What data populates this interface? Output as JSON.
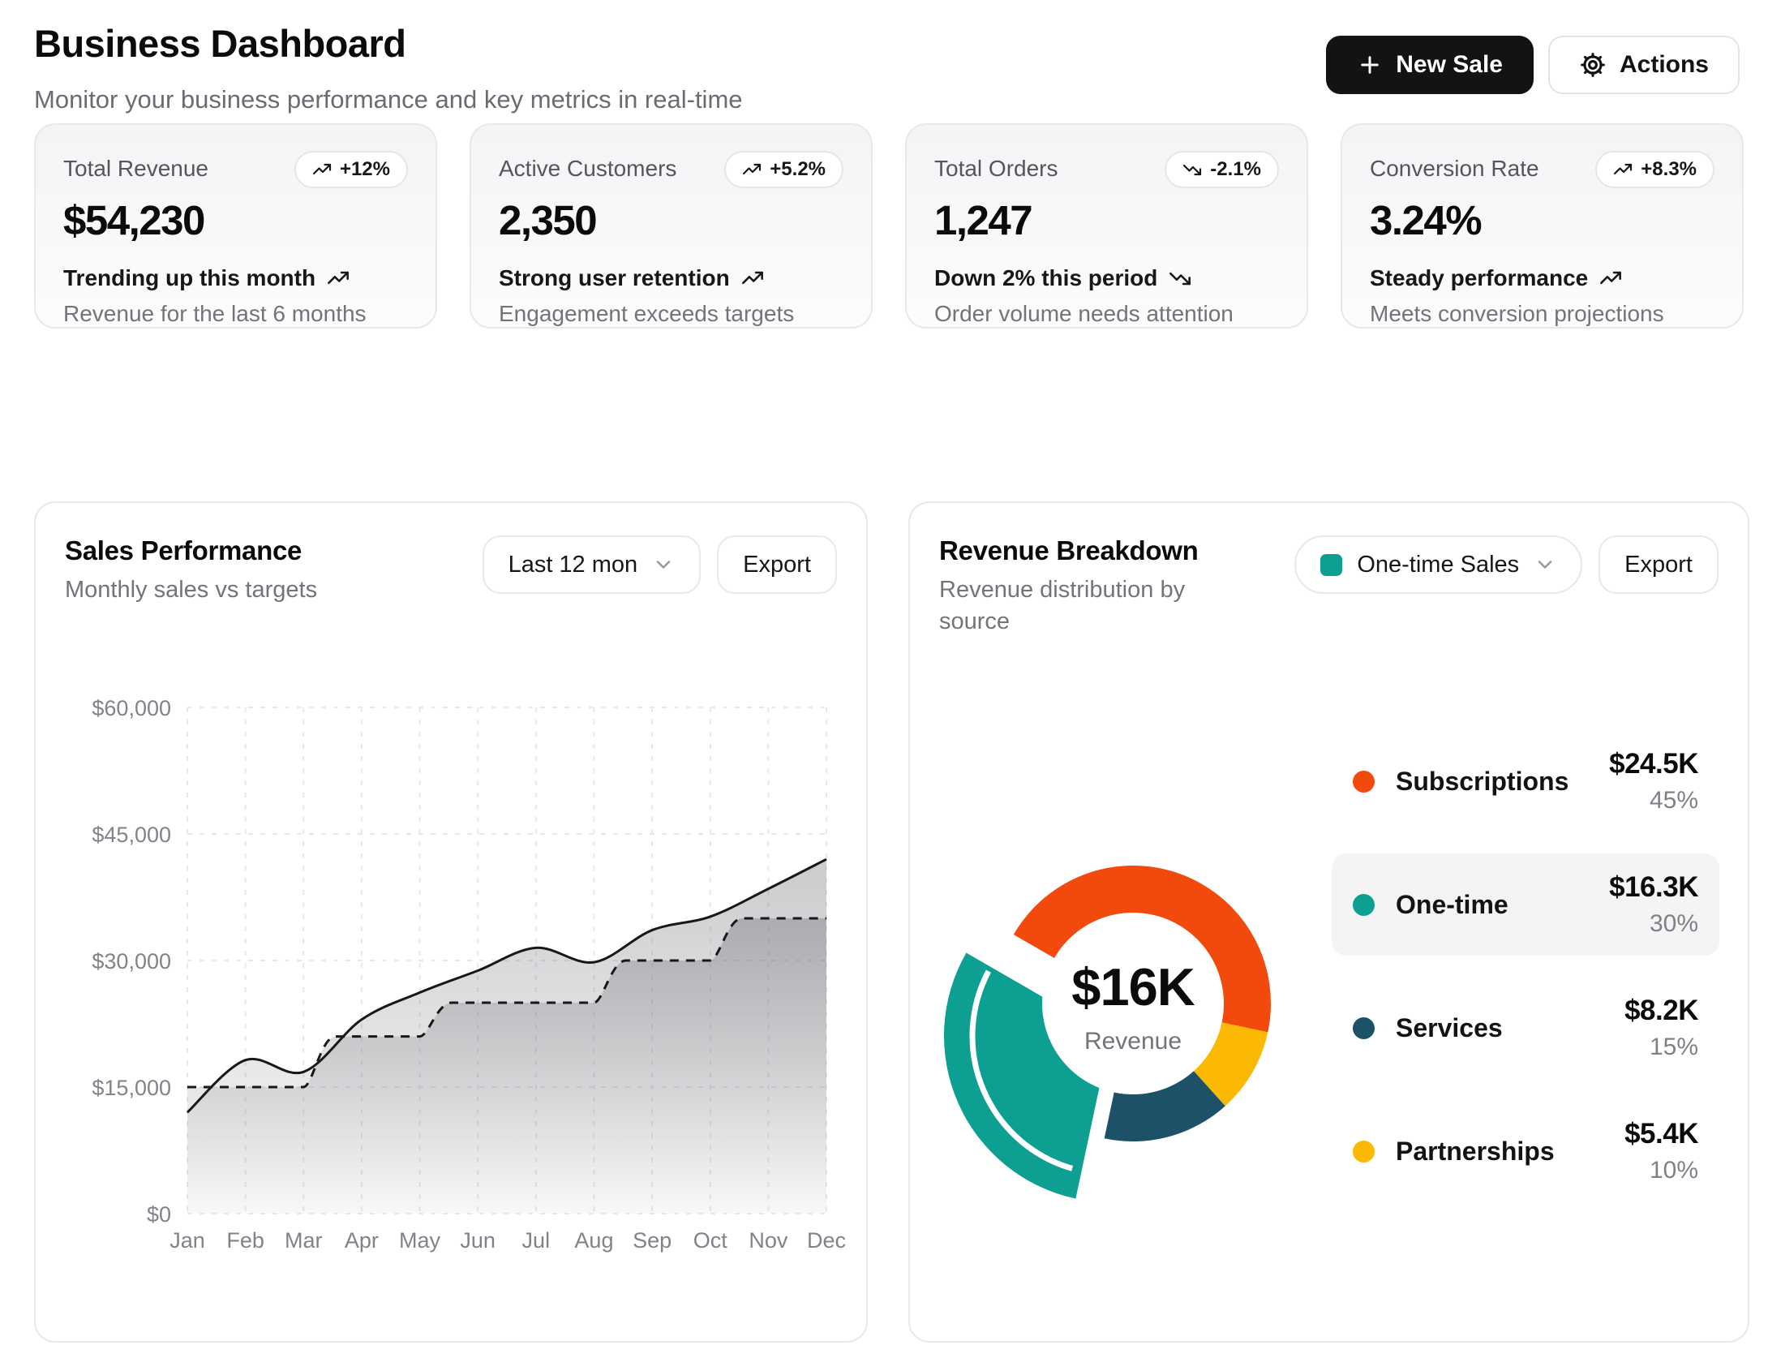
{
  "header": {
    "title": "Business Dashboard",
    "subtitle": "Monitor your business performance and key metrics in real-time",
    "new_sale_label": "New Sale",
    "actions_label": "Actions"
  },
  "stats": [
    {
      "label": "Total Revenue",
      "value": "$54,230",
      "badge": "+12%",
      "trend": "up",
      "footline": "Trending up this month",
      "subline": "Revenue for the last 6 months"
    },
    {
      "label": "Active Customers",
      "value": "2,350",
      "badge": "+5.2%",
      "trend": "up",
      "footline": "Strong user retention",
      "subline": "Engagement exceeds targets"
    },
    {
      "label": "Total Orders",
      "value": "1,247",
      "badge": "-2.1%",
      "trend": "down",
      "footline": "Down 2% this period",
      "subline": "Order volume needs attention"
    },
    {
      "label": "Conversion Rate",
      "value": "3.24%",
      "badge": "+8.3%",
      "trend": "up",
      "footline": "Steady performance",
      "subline": "Meets conversion projections"
    }
  ],
  "sales_card": {
    "title": "Sales Performance",
    "subtitle": "Monthly sales vs targets",
    "range_label": "Last 12 mon",
    "export_label": "Export"
  },
  "revenue_card": {
    "title": "Revenue Breakdown",
    "subtitle": "Revenue distribution by source",
    "filter_label": "One-time Sales",
    "export_label": "Export"
  },
  "colors": {
    "primary_button_bg": "#131316",
    "chart_line": "#18181b",
    "grid": "#e9e9ec",
    "muted_text": "#73737c",
    "highlight_row_bg": "#f4f4f5"
  },
  "chart_data": [
    {
      "type": "area",
      "title": "Sales Performance",
      "x": [
        "Jan",
        "Feb",
        "Mar",
        "Apr",
        "May",
        "Jun",
        "Jul",
        "Aug",
        "Sep",
        "Oct",
        "Nov",
        "Dec"
      ],
      "series": [
        {
          "name": "Sales",
          "style": "solid-smooth",
          "values": [
            12000,
            18200,
            16800,
            23000,
            26200,
            28800,
            31500,
            29800,
            33600,
            35200,
            38500,
            42000
          ]
        },
        {
          "name": "Target",
          "style": "dashed-step",
          "values": [
            15000,
            15000,
            15000,
            21000,
            21000,
            25000,
            25000,
            25000,
            30000,
            30000,
            35000,
            35000
          ]
        }
      ],
      "ylim": [
        0,
        60000
      ],
      "ytick_values": [
        0,
        15000,
        30000,
        45000,
        60000
      ],
      "ytick_labels": [
        "$0",
        "$15,000",
        "$30,000",
        "$45,000",
        "$60,000"
      ],
      "grid": "dashed-both",
      "legend": "none"
    },
    {
      "type": "donut",
      "title": "Revenue Breakdown",
      "start_angle_clock_deg": 300,
      "clockwise_order": [
        "Subscriptions",
        "Partnerships",
        "Services",
        "One-time"
      ],
      "center": {
        "value": "$16K",
        "label": "Revenue"
      },
      "segments": [
        {
          "label": "Subscriptions",
          "amount": "$24.5K",
          "percent": 45,
          "percent_label": "45%",
          "color": "#f2490c"
        },
        {
          "label": "One-time",
          "amount": "$16.3K",
          "percent": 30,
          "percent_label": "30%",
          "color": "#0d9f92",
          "highlighted": true,
          "exploded": true
        },
        {
          "label": "Services",
          "amount": "$8.2K",
          "percent": 15,
          "percent_label": "15%",
          "color": "#1d5168"
        },
        {
          "label": "Partnerships",
          "amount": "$5.4K",
          "percent": 10,
          "percent_label": "10%",
          "color": "#fcb903"
        }
      ]
    }
  ]
}
